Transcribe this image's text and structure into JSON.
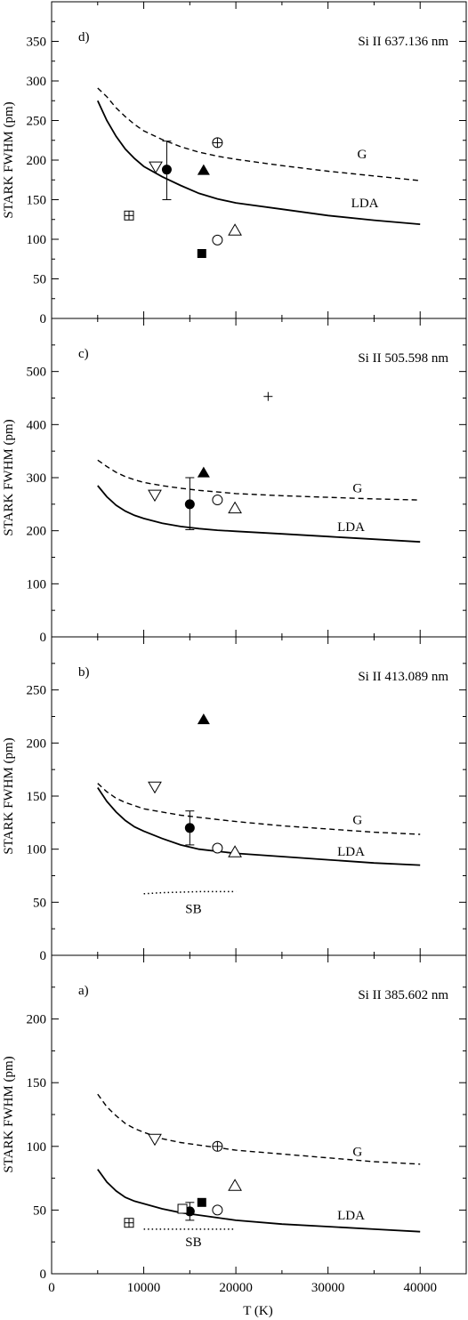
{
  "figure": {
    "ylabel": "STARK  FWHM (pm)",
    "xlabel": "T (K)",
    "x_ticks": [
      0,
      10000,
      20000,
      30000,
      40000
    ],
    "x_tick_labels": [
      "0",
      "10000",
      "20000",
      "30000",
      "40000"
    ],
    "xlim": [
      0,
      45000
    ]
  },
  "chart_data": [
    {
      "type": "scatter",
      "panel": "d)",
      "title": "Si II 637.136 nm",
      "ylim": [
        0,
        400
      ],
      "y_ticks": [
        0,
        50,
        100,
        150,
        200,
        250,
        300,
        350
      ],
      "y_tick_labels": [
        "0",
        "50",
        "100",
        "150",
        "200",
        "250",
        "300",
        "350"
      ],
      "curves": [
        {
          "label": "G",
          "style": "dashed",
          "label_at": [
            33700,
            208
          ],
          "points": [
            [
              5000,
              291
            ],
            [
              6000,
              280
            ],
            [
              7000,
              266
            ],
            [
              8000,
              255
            ],
            [
              9000,
              245
            ],
            [
              10000,
              237
            ],
            [
              12000,
              226
            ],
            [
              14000,
              217
            ],
            [
              16000,
              210
            ],
            [
              18000,
              205
            ],
            [
              20000,
              201
            ],
            [
              25000,
              193
            ],
            [
              30000,
              186
            ],
            [
              35000,
              180
            ],
            [
              40000,
              174
            ]
          ]
        },
        {
          "label": "LDA",
          "style": "solid",
          "label_at": [
            34000,
            146
          ],
          "points": [
            [
              5000,
              275
            ],
            [
              6000,
              250
            ],
            [
              7000,
              230
            ],
            [
              8000,
              214
            ],
            [
              9000,
              202
            ],
            [
              10000,
              192
            ],
            [
              12000,
              179
            ],
            [
              14000,
              168
            ],
            [
              16000,
              158
            ],
            [
              18000,
              151
            ],
            [
              20000,
              146
            ],
            [
              25000,
              138
            ],
            [
              30000,
              130
            ],
            [
              35000,
              124
            ],
            [
              40000,
              119
            ]
          ]
        }
      ],
      "points": [
        {
          "marker": "circle-filled",
          "x": 12500,
          "y": 188,
          "yerr": [
            150,
            224
          ]
        },
        {
          "marker": "triangle-down-open",
          "x": 11300,
          "y": 192
        },
        {
          "marker": "triangle-filled",
          "x": 16500,
          "y": 187
        },
        {
          "marker": "circle-plus",
          "x": 18000,
          "y": 222
        },
        {
          "marker": "square-plus",
          "x": 8400,
          "y": 130
        },
        {
          "marker": "circle-open",
          "x": 18000,
          "y": 99
        },
        {
          "marker": "triangle-open",
          "x": 19900,
          "y": 111
        },
        {
          "marker": "square-filled",
          "x": 16300,
          "y": 82
        }
      ]
    },
    {
      "type": "scatter",
      "panel": "c)",
      "title": "Si II 505.598 nm",
      "ylim": [
        0,
        600
      ],
      "y_ticks": [
        0,
        100,
        200,
        300,
        400,
        500
      ],
      "y_tick_labels": [
        "0",
        "100",
        "200",
        "300",
        "400",
        "500"
      ],
      "curves": [
        {
          "label": "G",
          "style": "dashed",
          "label_at": [
            33200,
            281
          ],
          "points": [
            [
              5000,
              333
            ],
            [
              6000,
              321
            ],
            [
              7000,
              310
            ],
            [
              8000,
              302
            ],
            [
              9000,
              296
            ],
            [
              10000,
              291
            ],
            [
              12000,
              285
            ],
            [
              14000,
              280
            ],
            [
              16000,
              276
            ],
            [
              18000,
              273
            ],
            [
              20000,
              270
            ],
            [
              25000,
              266
            ],
            [
              30000,
              263
            ],
            [
              35000,
              260
            ],
            [
              40000,
              258
            ]
          ]
        },
        {
          "label": "LDA",
          "style": "solid",
          "label_at": [
            32500,
            208
          ],
          "points": [
            [
              5000,
              285
            ],
            [
              6000,
              264
            ],
            [
              7000,
              248
            ],
            [
              8000,
              237
            ],
            [
              9000,
              229
            ],
            [
              10000,
              223
            ],
            [
              12000,
              214
            ],
            [
              14000,
              208
            ],
            [
              16000,
              204
            ],
            [
              18000,
              201
            ],
            [
              20000,
              199
            ],
            [
              25000,
              194
            ],
            [
              30000,
              189
            ],
            [
              35000,
              184
            ],
            [
              40000,
              179
            ]
          ]
        }
      ],
      "points": [
        {
          "marker": "circle-filled",
          "x": 15000,
          "y": 250,
          "yerr": [
            202,
            300
          ]
        },
        {
          "marker": "triangle-down-open",
          "x": 11200,
          "y": 268
        },
        {
          "marker": "triangle-filled",
          "x": 16500,
          "y": 309
        },
        {
          "marker": "circle-open",
          "x": 18000,
          "y": 258
        },
        {
          "marker": "triangle-open",
          "x": 19900,
          "y": 242
        },
        {
          "marker": "plus",
          "x": 23500,
          "y": 453
        }
      ]
    },
    {
      "type": "scatter",
      "panel": "b)",
      "title": "Si II 413.089 nm",
      "ylim": [
        0,
        300
      ],
      "y_ticks": [
        0,
        50,
        100,
        150,
        200,
        250
      ],
      "y_tick_labels": [
        "0",
        "50",
        "100",
        "150",
        "200",
        "250"
      ],
      "curves": [
        {
          "label": "G",
          "style": "dashed",
          "label_at": [
            33200,
            128
          ],
          "points": [
            [
              5000,
              162
            ],
            [
              6000,
              154
            ],
            [
              7000,
              148
            ],
            [
              8000,
              144
            ],
            [
              9000,
              141
            ],
            [
              10000,
              138
            ],
            [
              12000,
              135
            ],
            [
              14000,
              132
            ],
            [
              16000,
              130
            ],
            [
              18000,
              128
            ],
            [
              20000,
              126
            ],
            [
              25000,
              122
            ],
            [
              30000,
              119
            ],
            [
              35000,
              116
            ],
            [
              40000,
              114
            ]
          ]
        },
        {
          "label": "LDA",
          "style": "solid",
          "label_at": [
            32500,
            98
          ],
          "points": [
            [
              5000,
              158
            ],
            [
              6000,
              145
            ],
            [
              7000,
              135
            ],
            [
              8000,
              127
            ],
            [
              9000,
              121
            ],
            [
              10000,
              117
            ],
            [
              12000,
              110
            ],
            [
              14000,
              104
            ],
            [
              16000,
              100
            ],
            [
              18000,
              98
            ],
            [
              20000,
              96
            ],
            [
              25000,
              93
            ],
            [
              30000,
              90
            ],
            [
              35000,
              87
            ],
            [
              40000,
              85
            ]
          ]
        },
        {
          "label": "SB",
          "style": "dotted",
          "label_at": [
            15400,
            44
          ],
          "points": [
            [
              10000,
              58
            ],
            [
              12000,
              59
            ],
            [
              14000,
              59.5
            ],
            [
              16000,
              60
            ],
            [
              18000,
              60
            ],
            [
              20000,
              60
            ]
          ]
        }
      ],
      "points": [
        {
          "marker": "circle-filled",
          "x": 15000,
          "y": 120,
          "yerr": [
            104,
            136
          ]
        },
        {
          "marker": "triangle-down-open",
          "x": 11200,
          "y": 159
        },
        {
          "marker": "triangle-filled",
          "x": 16500,
          "y": 222
        },
        {
          "marker": "circle-open",
          "x": 18000,
          "y": 101
        },
        {
          "marker": "triangle-open",
          "x": 19900,
          "y": 97
        }
      ]
    },
    {
      "type": "scatter",
      "panel": "a)",
      "title": "Si II 385.602 nm",
      "ylim": [
        0,
        250
      ],
      "y_ticks": [
        0,
        50,
        100,
        150,
        200
      ],
      "y_tick_labels": [
        "0",
        "50",
        "100",
        "150",
        "200"
      ],
      "curves": [
        {
          "label": "G",
          "style": "dashed",
          "label_at": [
            33200,
            96
          ],
          "points": [
            [
              5000,
              141
            ],
            [
              6000,
              131
            ],
            [
              7000,
              124
            ],
            [
              8000,
              118
            ],
            [
              9000,
              114
            ],
            [
              10000,
              111
            ],
            [
              12000,
              106
            ],
            [
              14000,
              103
            ],
            [
              16000,
              101
            ],
            [
              18000,
              99
            ],
            [
              20000,
              97
            ],
            [
              25000,
              94
            ],
            [
              30000,
              91
            ],
            [
              35000,
              88
            ],
            [
              40000,
              86
            ]
          ]
        },
        {
          "label": "LDA",
          "style": "solid",
          "label_at": [
            32500,
            46
          ],
          "points": [
            [
              5000,
              82
            ],
            [
              6000,
              72
            ],
            [
              7000,
              65
            ],
            [
              8000,
              60
            ],
            [
              9000,
              57
            ],
            [
              10000,
              55
            ],
            [
              12000,
              51
            ],
            [
              14000,
              48
            ],
            [
              16000,
              46
            ],
            [
              18000,
              44
            ],
            [
              20000,
              42
            ],
            [
              25000,
              39
            ],
            [
              30000,
              37
            ],
            [
              35000,
              35
            ],
            [
              40000,
              33
            ]
          ]
        },
        {
          "label": "SB",
          "style": "dotted",
          "label_at": [
            15400,
            25
          ],
          "points": [
            [
              10000,
              35
            ],
            [
              12000,
              35
            ],
            [
              14000,
              35
            ],
            [
              16000,
              35
            ],
            [
              18000,
              35
            ],
            [
              20000,
              35
            ]
          ]
        }
      ],
      "points": [
        {
          "marker": "circle-filled",
          "x": 15000,
          "y": 49,
          "yerr": [
            42,
            56
          ]
        },
        {
          "marker": "triangle-down-open",
          "x": 11200,
          "y": 106
        },
        {
          "marker": "circle-plus",
          "x": 18000,
          "y": 100
        },
        {
          "marker": "square-plus",
          "x": 8400,
          "y": 40
        },
        {
          "marker": "square-open",
          "x": 14200,
          "y": 51
        },
        {
          "marker": "square-filled",
          "x": 16300,
          "y": 56
        },
        {
          "marker": "circle-open",
          "x": 18000,
          "y": 50
        },
        {
          "marker": "triangle-open",
          "x": 19900,
          "y": 69
        }
      ]
    }
  ]
}
